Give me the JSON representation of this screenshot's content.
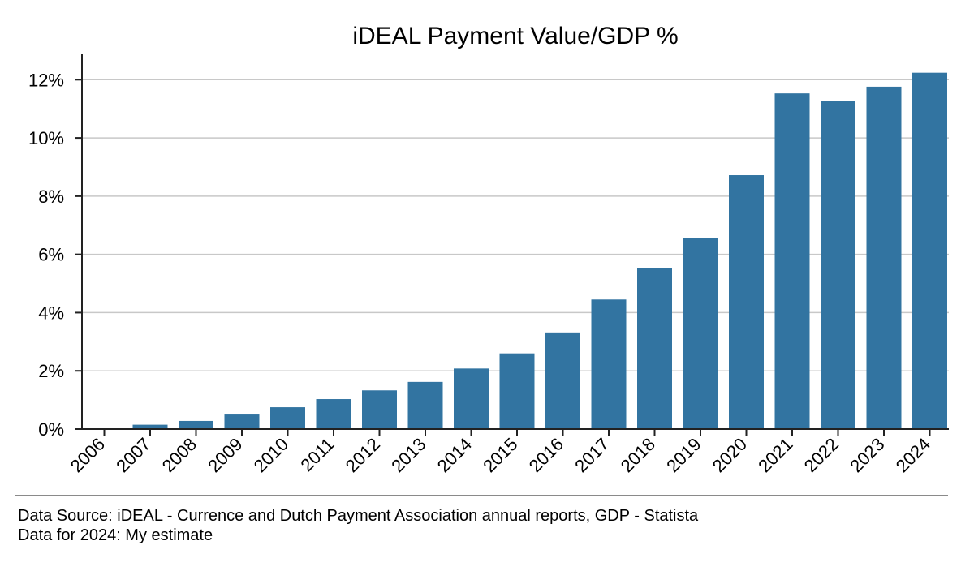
{
  "chart_data": {
    "type": "bar",
    "title": "iDEAL Payment Value/GDP %",
    "xlabel": "",
    "ylabel": "",
    "categories": [
      "2006",
      "2007",
      "2008",
      "2009",
      "2010",
      "2011",
      "2012",
      "2013",
      "2014",
      "2015",
      "2016",
      "2017",
      "2018",
      "2019",
      "2020",
      "2021",
      "2022",
      "2023",
      "2024"
    ],
    "values": [
      0.0,
      0.15,
      0.28,
      0.5,
      0.75,
      1.03,
      1.33,
      1.62,
      2.08,
      2.6,
      3.32,
      4.45,
      5.52,
      6.55,
      8.72,
      11.53,
      11.28,
      11.76,
      12.24
    ],
    "ylim": [
      0,
      12.9
    ],
    "yticks": [
      0,
      2,
      4,
      6,
      8,
      10,
      12
    ],
    "ytick_labels": [
      "0%",
      "2%",
      "4%",
      "6%",
      "8%",
      "10%",
      "12%"
    ],
    "grid": "horizontal",
    "bar_color": "#3274a1",
    "grid_color": "#c8c8c8"
  },
  "footer": {
    "source_line1": "Data Source: iDEAL - Currence and Dutch Payment Association annual reports, GDP - Statista",
    "source_line2": "Data for 2024: My estimate"
  }
}
